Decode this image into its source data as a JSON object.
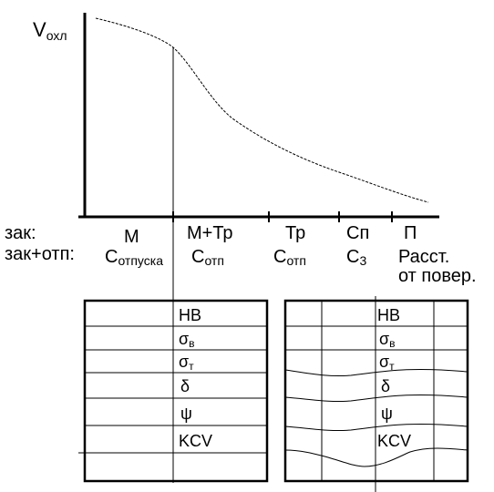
{
  "axis": {
    "y_label": "V",
    "y_label_sub": "охл"
  },
  "row_labels": {
    "zak": "зак:",
    "zak_otp": "зак+отп:"
  },
  "columns": [
    {
      "top": "М",
      "bottom_main": "С",
      "bottom_sub": "отпуска"
    },
    {
      "top": "М+Тр",
      "bottom_main": "С",
      "bottom_sub": "отп"
    },
    {
      "top": "Тр",
      "bottom_main": "С",
      "bottom_sub": "отп"
    },
    {
      "top": "Сп",
      "bottom_main": "С",
      "bottom_sub": "3"
    },
    {
      "top": "П",
      "bottom_main": "Расст.",
      "bottom_line2": "от повер."
    }
  ],
  "properties": [
    {
      "main": "HB",
      "sub": ""
    },
    {
      "main": "σ",
      "sub": "в"
    },
    {
      "main": "σ",
      "sub": "т"
    },
    {
      "main": "δ",
      "sub": ""
    },
    {
      "main": "ψ",
      "sub": ""
    },
    {
      "main": "KCV",
      "sub": ""
    }
  ]
}
